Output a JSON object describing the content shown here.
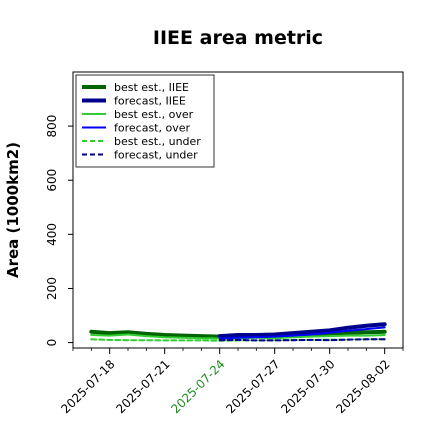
{
  "chart_data": {
    "type": "line",
    "title": "IIEE area metric",
    "xlabel": "",
    "ylabel": "Area (1000km2)",
    "ylim": [
      -20,
      1000
    ],
    "yticks": [
      0,
      200,
      400,
      600,
      800
    ],
    "xlim": [
      "2025-07-16",
      "2025-08-03"
    ],
    "xticks": [
      {
        "label": "2025-07-18",
        "date": "2025-07-18",
        "color": "#000000"
      },
      {
        "label": "2025-07-21",
        "date": "2025-07-21",
        "color": "#000000"
      },
      {
        "label": "2025-07-24",
        "date": "2025-07-24",
        "color": "#228B22"
      },
      {
        "label": "2025-07-27",
        "date": "2025-07-27",
        "color": "#000000"
      },
      {
        "label": "2025-07-30",
        "date": "2025-07-30",
        "color": "#000000"
      },
      {
        "label": "2025-08-02",
        "date": "2025-08-02",
        "color": "#000000"
      }
    ],
    "grid": false,
    "legend_position": "top-left",
    "series": [
      {
        "name": "best est., IIEE",
        "color": "#006400",
        "width": 4,
        "dash": "",
        "x": [
          "2025-07-17",
          "2025-07-18",
          "2025-07-19",
          "2025-07-20",
          "2025-07-21",
          "2025-07-22",
          "2025-07-23",
          "2025-07-24",
          "2025-07-25",
          "2025-07-26",
          "2025-07-27",
          "2025-07-28",
          "2025-07-29",
          "2025-07-30",
          "2025-07-31",
          "2025-08-01",
          "2025-08-02"
        ],
        "y": [
          40,
          35,
          38,
          32,
          28,
          26,
          24,
          22,
          24,
          26,
          25,
          30,
          32,
          34,
          36,
          38,
          40
        ]
      },
      {
        "name": "forecast, IIEE",
        "color": "#00008B",
        "width": 4,
        "dash": "",
        "x": [
          "2025-07-24",
          "2025-07-25",
          "2025-07-26",
          "2025-07-27",
          "2025-07-28",
          "2025-07-29",
          "2025-07-30",
          "2025-07-31",
          "2025-08-01",
          "2025-08-02"
        ],
        "y": [
          24,
          28,
          28,
          30,
          35,
          40,
          45,
          55,
          62,
          68
        ]
      },
      {
        "name": "best est., over",
        "color": "#32CD32",
        "width": 2,
        "dash": "",
        "x": [
          "2025-07-17",
          "2025-07-18",
          "2025-07-19",
          "2025-07-20",
          "2025-07-21",
          "2025-07-22",
          "2025-07-23",
          "2025-07-24",
          "2025-07-25",
          "2025-07-26",
          "2025-07-27",
          "2025-07-28",
          "2025-07-29",
          "2025-07-30",
          "2025-07-31",
          "2025-08-01",
          "2025-08-02"
        ],
        "y": [
          28,
          26,
          30,
          24,
          20,
          18,
          16,
          15,
          16,
          18,
          16,
          20,
          22,
          24,
          26,
          26,
          28
        ]
      },
      {
        "name": "forecast, over",
        "color": "#0000FF",
        "width": 2,
        "dash": "",
        "x": [
          "2025-07-24",
          "2025-07-25",
          "2025-07-26",
          "2025-07-27",
          "2025-07-28",
          "2025-07-29",
          "2025-07-30",
          "2025-07-31",
          "2025-08-01",
          "2025-08-02"
        ],
        "y": [
          15,
          18,
          20,
          22,
          26,
          30,
          36,
          44,
          50,
          56
        ]
      },
      {
        "name": "best est., under",
        "color": "#32CD32",
        "width": 2,
        "dash": "5,3",
        "x": [
          "2025-07-17",
          "2025-07-18",
          "2025-07-19",
          "2025-07-20",
          "2025-07-21",
          "2025-07-22",
          "2025-07-23",
          "2025-07-24",
          "2025-07-25",
          "2025-07-26",
          "2025-07-27",
          "2025-07-28",
          "2025-07-29",
          "2025-07-30",
          "2025-07-31",
          "2025-08-01",
          "2025-08-02"
        ],
        "y": [
          12,
          10,
          9,
          9,
          8,
          8,
          8,
          7,
          8,
          8,
          9,
          10,
          10,
          11,
          11,
          12,
          12
        ]
      },
      {
        "name": "forecast, under",
        "color": "#00008B",
        "width": 2,
        "dash": "5,3",
        "x": [
          "2025-07-24",
          "2025-07-25",
          "2025-07-26",
          "2025-07-27",
          "2025-07-28",
          "2025-07-29",
          "2025-07-30",
          "2025-07-31",
          "2025-08-01",
          "2025-08-02"
        ],
        "y": [
          9,
          10,
          8,
          8,
          9,
          10,
          9,
          11,
          12,
          12
        ]
      }
    ]
  }
}
